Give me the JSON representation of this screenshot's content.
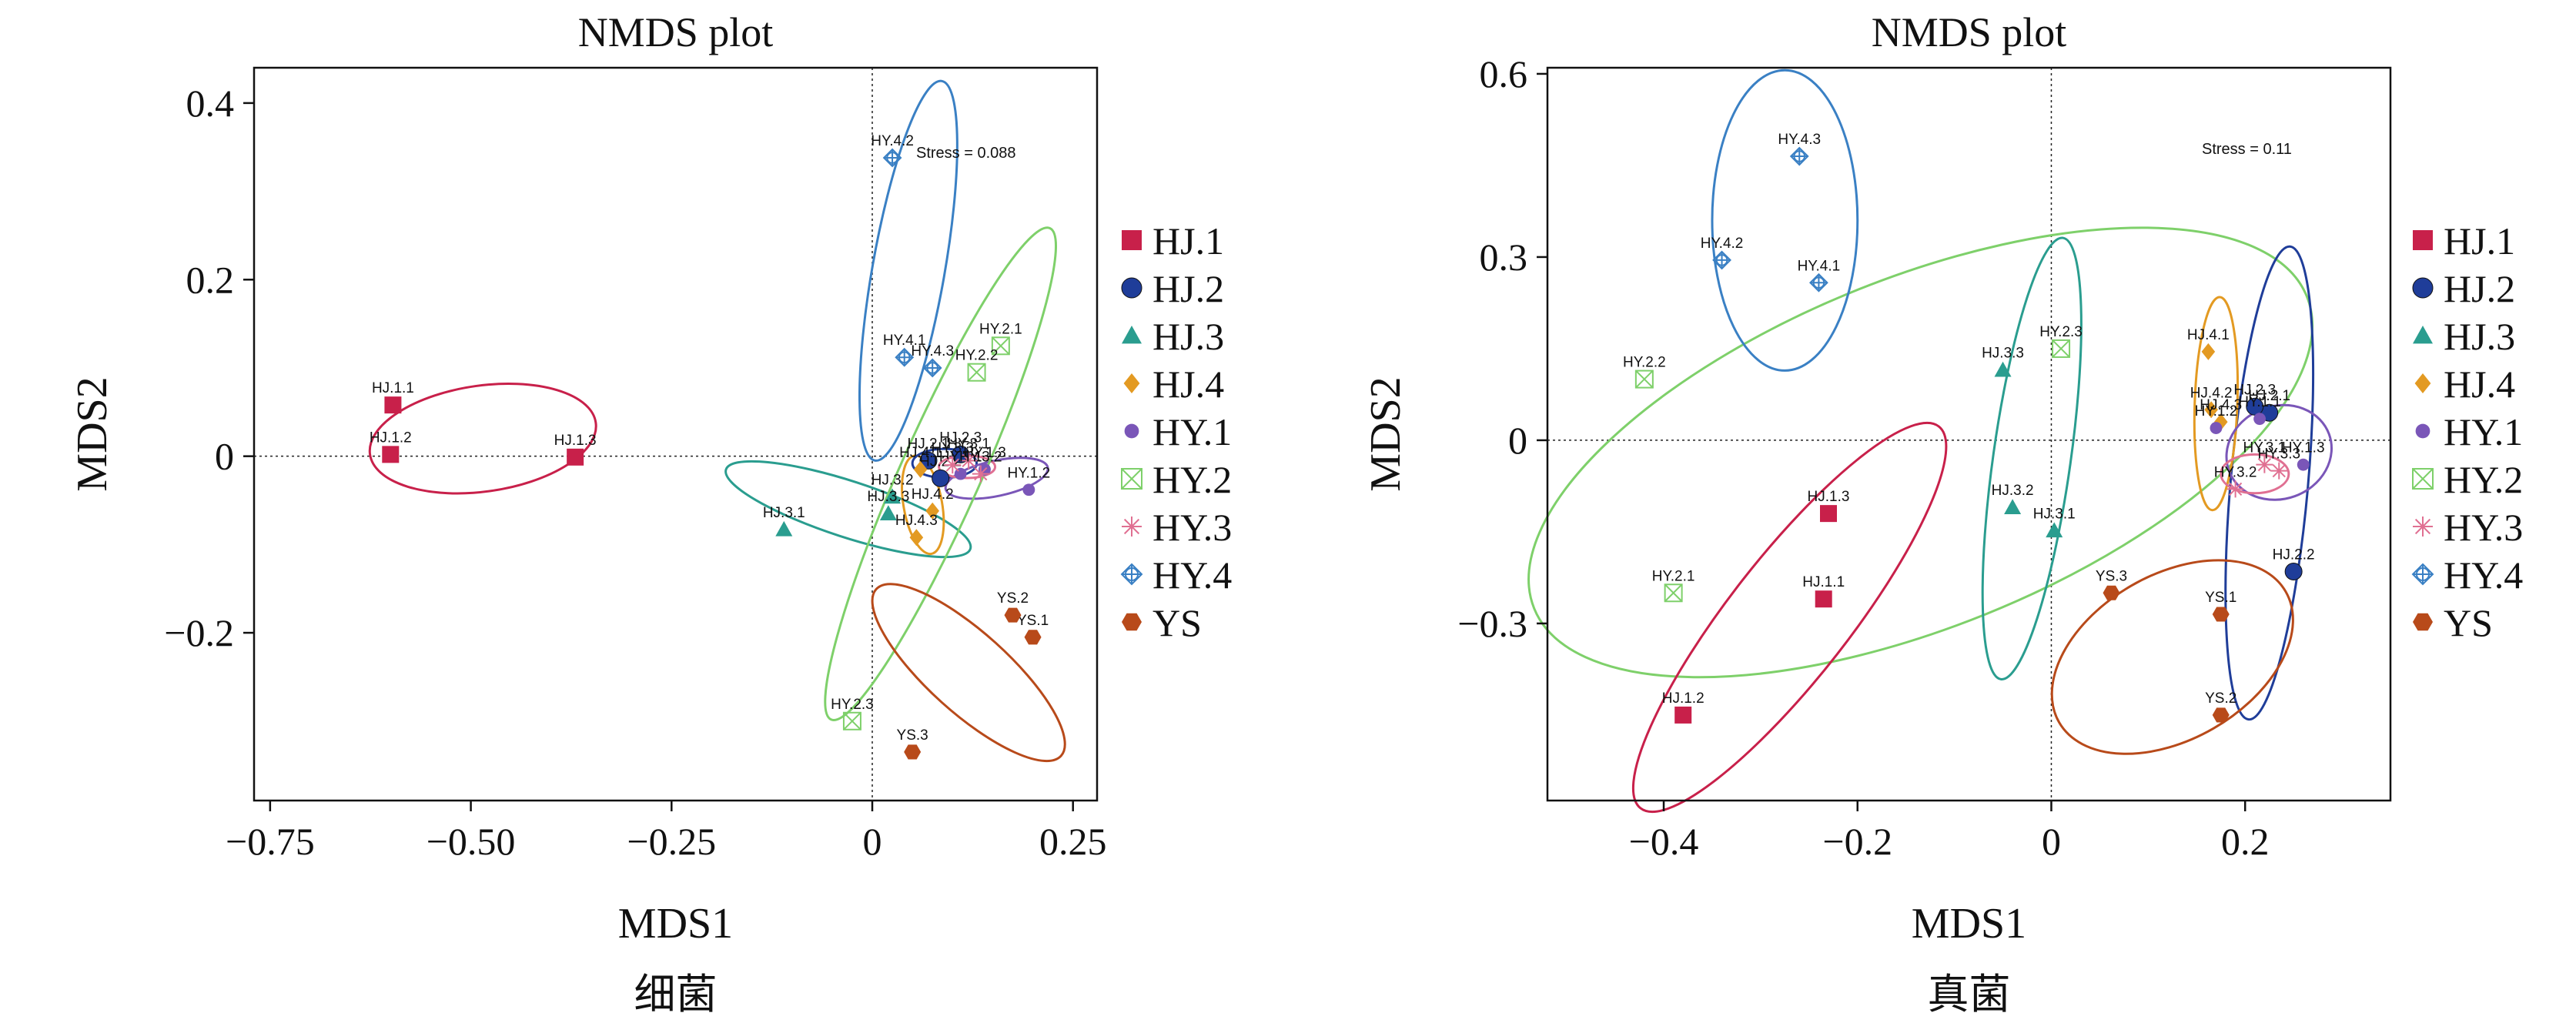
{
  "colors": {
    "HJ.1": "#c8204a",
    "HJ.2": "#1f3d99",
    "HJ.3": "#2a9d8f",
    "HJ.4": "#e39a22",
    "HY.1": "#7a56b8",
    "HY.2": "#7ed06a",
    "HY.3": "#e07092",
    "HY.4": "#3a80c4",
    "YS": "#b84a1a"
  },
  "legend": [
    {
      "label": "HJ.1",
      "shape": "square"
    },
    {
      "label": "HJ.2",
      "shape": "circle"
    },
    {
      "label": "HJ.3",
      "shape": "triangle"
    },
    {
      "label": "HJ.4",
      "shape": "diamond"
    },
    {
      "label": "HY.1",
      "shape": "dot"
    },
    {
      "label": "HY.2",
      "shape": "box-x"
    },
    {
      "label": "HY.3",
      "shape": "asterisk"
    },
    {
      "label": "HY.4",
      "shape": "circle-plus"
    },
    {
      "label": "YS",
      "shape": "hexagon"
    }
  ],
  "chart_data": [
    {
      "type": "scatter",
      "title": "NMDS plot",
      "xlabel": "MDS1",
      "ylabel": "MDS2",
      "caption": "细菌",
      "stress": "Stress = 0.088",
      "xlim": [
        -0.77,
        0.28
      ],
      "ylim": [
        -0.39,
        0.44
      ],
      "xticks": [
        {
          "v": -0.75,
          "t": "−0.75"
        },
        {
          "v": -0.5,
          "t": "−0.50"
        },
        {
          "v": -0.25,
          "t": "−0.25"
        },
        {
          "v": 0,
          "t": "0"
        },
        {
          "v": 0.25,
          "t": "0.25"
        }
      ],
      "yticks": [
        {
          "v": -0.2,
          "t": "−0.2"
        },
        {
          "v": 0,
          "t": "0"
        },
        {
          "v": 0.2,
          "t": "0.2"
        },
        {
          "v": 0.4,
          "t": "0.4"
        }
      ],
      "points": [
        {
          "g": "HJ.1",
          "label": "HJ.1.1",
          "x": -0.597,
          "y": 0.058
        },
        {
          "g": "HJ.1",
          "label": "HJ.1.2",
          "x": -0.6,
          "y": 0.002
        },
        {
          "g": "HJ.1",
          "label": "HJ.1.3",
          "x": -0.37,
          "y": -0.001
        },
        {
          "g": "HJ.2",
          "label": "HJ.2.1",
          "x": 0.07,
          "y": -0.005
        },
        {
          "g": "HJ.2",
          "label": "HJ.2.2",
          "x": 0.085,
          "y": -0.025
        },
        {
          "g": "HJ.2",
          "label": "HJ.2.3",
          "x": 0.11,
          "y": 0.002
        },
        {
          "g": "HJ.3",
          "label": "HJ.3.1",
          "x": -0.11,
          "y": -0.083
        },
        {
          "g": "HJ.3",
          "label": "HJ.3.2",
          "x": 0.025,
          "y": -0.046
        },
        {
          "g": "HJ.3",
          "label": "HJ.3.3",
          "x": 0.02,
          "y": -0.065
        },
        {
          "g": "HJ.4",
          "label": "HJ.4.1",
          "x": 0.06,
          "y": -0.015
        },
        {
          "g": "HJ.4",
          "label": "HJ.4.2",
          "x": 0.075,
          "y": -0.062
        },
        {
          "g": "HJ.4",
          "label": "HJ.4.3",
          "x": 0.055,
          "y": -0.092
        },
        {
          "g": "HY.1",
          "label": "HY.1.1",
          "x": 0.11,
          "y": -0.02
        },
        {
          "g": "HY.1",
          "label": "HY.1.2",
          "x": 0.195,
          "y": -0.038
        },
        {
          "g": "HY.1",
          "label": "HY.1.3",
          "x": 0.14,
          "y": -0.015
        },
        {
          "g": "HY.2",
          "label": "HY.2.1",
          "x": 0.16,
          "y": 0.125
        },
        {
          "g": "HY.2",
          "label": "HY.2.2",
          "x": 0.13,
          "y": 0.095
        },
        {
          "g": "HY.2",
          "label": "HY.2.3",
          "x": -0.025,
          "y": -0.3
        },
        {
          "g": "HY.3",
          "label": "HY.3.1",
          "x": 0.12,
          "y": -0.005
        },
        {
          "g": "HY.3",
          "label": "HY.3.2",
          "x": 0.135,
          "y": -0.02
        },
        {
          "g": "HY.3",
          "label": "HY.3.3",
          "x": 0.1,
          "y": -0.01
        },
        {
          "g": "HY.4",
          "label": "HY.4.1",
          "x": 0.04,
          "y": 0.112
        },
        {
          "g": "HY.4",
          "label": "HY.4.2",
          "x": 0.025,
          "y": 0.338
        },
        {
          "g": "HY.4",
          "label": "HY.4.3",
          "x": 0.075,
          "y": 0.1
        },
        {
          "g": "YS",
          "label": "YS.1",
          "x": 0.2,
          "y": -0.205
        },
        {
          "g": "YS",
          "label": "YS.2",
          "x": 0.175,
          "y": -0.18
        },
        {
          "g": "YS",
          "label": "YS.3",
          "x": 0.05,
          "y": -0.335
        }
      ],
      "ellipses": [
        {
          "g": "HJ.1",
          "cx": -0.485,
          "cy": 0.02,
          "rx": 0.142,
          "ry": 0.066,
          "rot": -8
        },
        {
          "g": "HJ.3",
          "cx": -0.03,
          "cy": -0.06,
          "rx": 0.16,
          "ry": 0.035,
          "rot": 18
        },
        {
          "g": "HJ.4",
          "cx": 0.063,
          "cy": -0.055,
          "rx": 0.062,
          "ry": 0.024,
          "rot": 80
        },
        {
          "g": "HJ.2",
          "cx": 0.09,
          "cy": -0.008,
          "rx": 0.04,
          "ry": 0.018,
          "rot": 0
        },
        {
          "g": "HY.1",
          "cx": 0.155,
          "cy": -0.025,
          "rx": 0.065,
          "ry": 0.022,
          "rot": -12
        },
        {
          "g": "HY.3",
          "cx": 0.118,
          "cy": -0.012,
          "rx": 0.035,
          "ry": 0.014,
          "rot": 0
        },
        {
          "g": "HY.4",
          "cx": 0.045,
          "cy": 0.21,
          "rx": 0.24,
          "ry": 0.045,
          "rot": -80
        },
        {
          "g": "HY.2",
          "cx": 0.085,
          "cy": -0.02,
          "rx": 0.335,
          "ry": 0.05,
          "rot": -66
        },
        {
          "g": "YS",
          "cx": 0.12,
          "cy": -0.245,
          "rx": 0.155,
          "ry": 0.05,
          "rot": 42
        }
      ]
    },
    {
      "type": "scatter",
      "title": "NMDS plot",
      "xlabel": "MDS1",
      "ylabel": "MDS2",
      "caption": "真菌",
      "stress": "Stress = 0.11",
      "xlim": [
        -0.52,
        0.35
      ],
      "ylim": [
        -0.59,
        0.61
      ],
      "xticks": [
        {
          "v": -0.4,
          "t": "−0.4"
        },
        {
          "v": -0.2,
          "t": "−0.2"
        },
        {
          "v": 0,
          "t": "0"
        },
        {
          "v": 0.2,
          "t": "0.2"
        }
      ],
      "yticks": [
        {
          "v": -0.3,
          "t": "−0.3"
        },
        {
          "v": 0,
          "t": "0"
        },
        {
          "v": 0.3,
          "t": "0.3"
        },
        {
          "v": 0.6,
          "t": "0.6"
        }
      ],
      "points": [
        {
          "g": "HJ.1",
          "label": "HJ.1.1",
          "x": -0.235,
          "y": -0.26
        },
        {
          "g": "HJ.1",
          "label": "HJ.1.2",
          "x": -0.38,
          "y": -0.45
        },
        {
          "g": "HJ.1",
          "label": "HJ.1.3",
          "x": -0.23,
          "y": -0.12
        },
        {
          "g": "HJ.2",
          "label": "HJ.2.1",
          "x": 0.225,
          "y": 0.045
        },
        {
          "g": "HJ.2",
          "label": "HJ.2.2",
          "x": 0.25,
          "y": -0.215
        },
        {
          "g": "HJ.2",
          "label": "HJ.2.3",
          "x": 0.21,
          "y": 0.055
        },
        {
          "g": "HJ.3",
          "label": "HJ.3.1",
          "x": 0.003,
          "y": -0.148
        },
        {
          "g": "HJ.3",
          "label": "HJ.3.2",
          "x": -0.04,
          "y": -0.11
        },
        {
          "g": "HJ.3",
          "label": "HJ.3.3",
          "x": -0.05,
          "y": 0.115
        },
        {
          "g": "HJ.4",
          "label": "HJ.4.1",
          "x": 0.162,
          "y": 0.145
        },
        {
          "g": "HJ.4",
          "label": "HJ.4.2",
          "x": 0.165,
          "y": 0.05
        },
        {
          "g": "HJ.4",
          "label": "HJ.4.3",
          "x": 0.175,
          "y": 0.03
        },
        {
          "g": "HY.1",
          "label": "HY.1.1",
          "x": 0.215,
          "y": 0.035
        },
        {
          "g": "HY.1",
          "label": "HY.1.2",
          "x": 0.17,
          "y": 0.02
        },
        {
          "g": "HY.1",
          "label": "HY.1.3",
          "x": 0.26,
          "y": -0.04
        },
        {
          "g": "HY.2",
          "label": "HY.2.1",
          "x": -0.39,
          "y": -0.25
        },
        {
          "g": "HY.2",
          "label": "HY.2.2",
          "x": -0.42,
          "y": 0.1
        },
        {
          "g": "HY.2",
          "label": "HY.2.3",
          "x": 0.01,
          "y": 0.15
        },
        {
          "g": "HY.3",
          "label": "HY.3.1",
          "x": 0.22,
          "y": -0.04
        },
        {
          "g": "HY.3",
          "label": "HY.3.2",
          "x": 0.19,
          "y": -0.08
        },
        {
          "g": "HY.3",
          "label": "HY.3.3",
          "x": 0.235,
          "y": -0.05
        },
        {
          "g": "HY.4",
          "label": "HY.4.1",
          "x": -0.24,
          "y": 0.258
        },
        {
          "g": "HY.4",
          "label": "HY.4.2",
          "x": -0.34,
          "y": 0.295
        },
        {
          "g": "HY.4",
          "label": "HY.4.3",
          "x": -0.26,
          "y": 0.465
        },
        {
          "g": "YS",
          "label": "YS.1",
          "x": 0.175,
          "y": -0.285
        },
        {
          "g": "YS",
          "label": "YS.2",
          "x": 0.175,
          "y": -0.45
        },
        {
          "g": "YS",
          "label": "YS.3",
          "x": 0.062,
          "y": -0.25
        }
      ],
      "ellipses": [
        {
          "g": "HY.2",
          "cx": -0.135,
          "cy": -0.02,
          "rx": 0.43,
          "ry": 0.18,
          "rot": -22
        },
        {
          "g": "HY.4",
          "cx": -0.275,
          "cy": 0.36,
          "rx": 0.075,
          "ry": 0.155,
          "rot": 0
        },
        {
          "g": "HJ.3",
          "cx": -0.02,
          "cy": -0.03,
          "rx": 0.23,
          "ry": 0.04,
          "rot": -82
        },
        {
          "g": "HJ.1",
          "cx": -0.27,
          "cy": -0.29,
          "rx": 0.25,
          "ry": 0.062,
          "rot": -52
        },
        {
          "g": "HJ.2",
          "cx": 0.225,
          "cy": -0.07,
          "rx": 0.245,
          "ry": 0.04,
          "rot": -85
        },
        {
          "g": "HJ.4",
          "cx": 0.17,
          "cy": 0.06,
          "rx": 0.11,
          "ry": 0.022,
          "rot": -88
        },
        {
          "g": "HY.1",
          "cx": 0.235,
          "cy": -0.02,
          "rx": 0.055,
          "ry": 0.048,
          "rot": -20
        },
        {
          "g": "HY.3",
          "cx": 0.21,
          "cy": -0.055,
          "rx": 0.035,
          "ry": 0.02,
          "rot": 0
        },
        {
          "g": "YS",
          "cx": 0.125,
          "cy": -0.355,
          "rx": 0.135,
          "ry": 0.085,
          "rot": -30
        }
      ]
    }
  ]
}
